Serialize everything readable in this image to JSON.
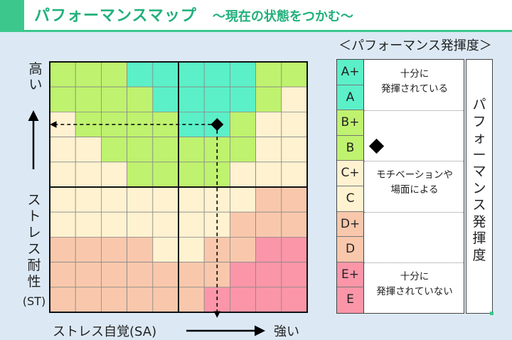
{
  "header": {
    "title": "パフォーマンスマップ",
    "subtitle": "～現在の状態をつかむ～"
  },
  "axes": {
    "y_top": "高い",
    "y_bottom": "ストレス耐性(ST)",
    "x": "ストレス自覚(SA)",
    "x_end": "強い"
  },
  "legend": {
    "title": "＜パフォーマンス発揮度＞",
    "right_label": "パフォーマンス発揮度",
    "levels": [
      {
        "label": "A+",
        "color": "#5bf0c8"
      },
      {
        "label": "A",
        "color": "#5bf0c8"
      },
      {
        "label": "B+",
        "color": "#bff26e"
      },
      {
        "label": "B",
        "color": "#bff26e"
      },
      {
        "label": "C+",
        "color": "#fff2d0"
      },
      {
        "label": "C",
        "color": "#fff2d0"
      },
      {
        "label": "D+",
        "color": "#f9c8ac"
      },
      {
        "label": "D",
        "color": "#f9c8ac"
      },
      {
        "label": "E+",
        "color": "#fb96a8"
      },
      {
        "label": "E",
        "color": "#fb96a8"
      }
    ],
    "groups": [
      {
        "text": "十分に\n発揮されている"
      },
      {
        "text": ""
      },
      {
        "text": "モチベーションや\n場面による"
      },
      {
        "text": ""
      },
      {
        "text": "十分に\n発揮されていない"
      }
    ]
  },
  "chart_data": {
    "type": "heatmap",
    "rows": 10,
    "cols": 10,
    "grid": [
      [
        "B",
        "B",
        "B",
        "A",
        "A",
        "A",
        "A",
        "A",
        "B",
        "B"
      ],
      [
        "B",
        "B",
        "B",
        "B",
        "A",
        "A",
        "A",
        "A",
        "B",
        "C"
      ],
      [
        "C",
        "B",
        "B",
        "B",
        "B",
        "A",
        "A",
        "B",
        "C",
        "C"
      ],
      [
        "C",
        "C",
        "B",
        "B",
        "B",
        "B",
        "B",
        "B",
        "C",
        "C"
      ],
      [
        "C",
        "C",
        "C",
        "B",
        "B",
        "B",
        "B",
        "C",
        "C",
        "C"
      ],
      [
        "C",
        "C",
        "C",
        "C",
        "C",
        "C",
        "C",
        "C",
        "D",
        "D"
      ],
      [
        "C",
        "C",
        "C",
        "C",
        "C",
        "C",
        "C",
        "D",
        "D",
        "D"
      ],
      [
        "D",
        "D",
        "D",
        "D",
        "C",
        "C",
        "D",
        "D",
        "E",
        "E"
      ],
      [
        "D",
        "D",
        "D",
        "D",
        "D",
        "D",
        "D",
        "E",
        "E",
        "E"
      ],
      [
        "D",
        "D",
        "D",
        "D",
        "D",
        "D",
        "E",
        "E",
        "E",
        "E"
      ]
    ],
    "colors": {
      "A": "#5bf0c8",
      "B": "#bff26e",
      "C": "#fff2d0",
      "D": "#f9c8ac",
      "E": "#fb96a8"
    },
    "marker": {
      "col": 6.5,
      "row": 2.5
    }
  }
}
